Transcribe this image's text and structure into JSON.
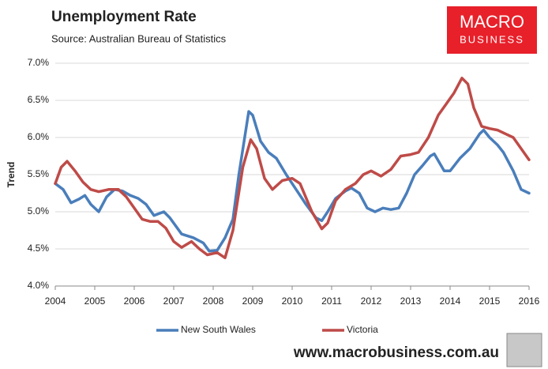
{
  "chart_data": {
    "type": "line",
    "title": "Unemployment Rate",
    "subtitle": "Source: Australian Bureau of Statistics",
    "y_label": "Trend",
    "logo": [
      "MACRO",
      "BUSINESS"
    ],
    "footer": "www.macrobusiness.com.au",
    "xlim": [
      2004,
      2016
    ],
    "xticks": [
      2004,
      2005,
      2006,
      2007,
      2008,
      2009,
      2010,
      2011,
      2012,
      2013,
      2014,
      2015,
      2016
    ],
    "ylim": [
      4,
      7
    ],
    "yticks": [
      {
        "value": 4,
        "label": "4.0%"
      },
      {
        "value": 4.5,
        "label": "4.5%"
      },
      {
        "value": 5,
        "label": "5.0%"
      },
      {
        "value": 5.5,
        "label": "5.5%"
      },
      {
        "value": 6,
        "label": "6.0%"
      },
      {
        "value": 6.5,
        "label": "6.5%"
      },
      {
        "value": 7,
        "label": "7.0%"
      }
    ],
    "grid": true,
    "series": [
      {
        "name": "New South Wales",
        "color": "#4a7ebb",
        "x": [
          2004.0,
          2004.2,
          2004.4,
          2004.6,
          2004.75,
          2004.9,
          2005.1,
          2005.3,
          2005.5,
          2005.7,
          2005.9,
          2006.1,
          2006.3,
          2006.5,
          2006.75,
          2006.9,
          2007.2,
          2007.5,
          2007.75,
          2007.9,
          2008.1,
          2008.3,
          2008.5,
          2008.65,
          2008.9,
          2009.0,
          2009.2,
          2009.4,
          2009.6,
          2009.85,
          2010.1,
          2010.35,
          2010.6,
          2010.75,
          2010.9,
          2011.1,
          2011.35,
          2011.5,
          2011.7,
          2011.9,
          2012.1,
          2012.3,
          2012.5,
          2012.7,
          2012.9,
          2013.1,
          2013.3,
          2013.5,
          2013.6,
          2013.85,
          2014.0,
          2014.25,
          2014.5,
          2014.75,
          2014.85,
          2015.0,
          2015.2,
          2015.35,
          2015.6,
          2015.8,
          2016.0
        ],
        "values": [
          5.38,
          5.3,
          5.12,
          5.17,
          5.22,
          5.1,
          5.0,
          5.2,
          5.3,
          5.28,
          5.22,
          5.18,
          5.1,
          4.95,
          5.0,
          4.92,
          4.7,
          4.65,
          4.58,
          4.47,
          4.48,
          4.65,
          4.9,
          5.5,
          6.35,
          6.3,
          5.95,
          5.8,
          5.72,
          5.5,
          5.3,
          5.1,
          4.92,
          4.88,
          5.0,
          5.18,
          5.28,
          5.32,
          5.25,
          5.05,
          5.0,
          5.05,
          5.03,
          5.05,
          5.25,
          5.5,
          5.62,
          5.75,
          5.78,
          5.55,
          5.55,
          5.72,
          5.85,
          6.05,
          6.1,
          6.0,
          5.9,
          5.8,
          5.55,
          5.3,
          5.25
        ]
      },
      {
        "name": "Victoria",
        "color": "#be4b48",
        "x": [
          2004.0,
          2004.15,
          2004.3,
          2004.5,
          2004.7,
          2004.9,
          2005.1,
          2005.35,
          2005.6,
          2005.8,
          2006.0,
          2006.2,
          2006.4,
          2006.6,
          2006.8,
          2007.0,
          2007.2,
          2007.45,
          2007.65,
          2007.85,
          2008.1,
          2008.3,
          2008.5,
          2008.75,
          2008.95,
          2009.1,
          2009.3,
          2009.5,
          2009.75,
          2010.0,
          2010.2,
          2010.5,
          2010.75,
          2010.9,
          2011.1,
          2011.35,
          2011.6,
          2011.8,
          2012.0,
          2012.25,
          2012.5,
          2012.75,
          2013.0,
          2013.2,
          2013.45,
          2013.7,
          2013.9,
          2014.1,
          2014.3,
          2014.45,
          2014.6,
          2014.8,
          2015.0,
          2015.2,
          2015.4,
          2015.6,
          2015.8,
          2016.0
        ],
        "values": [
          5.38,
          5.6,
          5.68,
          5.55,
          5.4,
          5.3,
          5.27,
          5.3,
          5.3,
          5.2,
          5.05,
          4.9,
          4.87,
          4.87,
          4.78,
          4.6,
          4.52,
          4.6,
          4.5,
          4.42,
          4.45,
          4.38,
          4.75,
          5.6,
          5.97,
          5.85,
          5.45,
          5.3,
          5.42,
          5.45,
          5.38,
          5.0,
          4.77,
          4.85,
          5.15,
          5.3,
          5.38,
          5.5,
          5.55,
          5.48,
          5.57,
          5.75,
          5.77,
          5.8,
          6.0,
          6.3,
          6.45,
          6.6,
          6.8,
          6.72,
          6.4,
          6.15,
          6.12,
          6.1,
          6.05,
          6.0,
          5.85,
          5.7
        ]
      }
    ]
  }
}
